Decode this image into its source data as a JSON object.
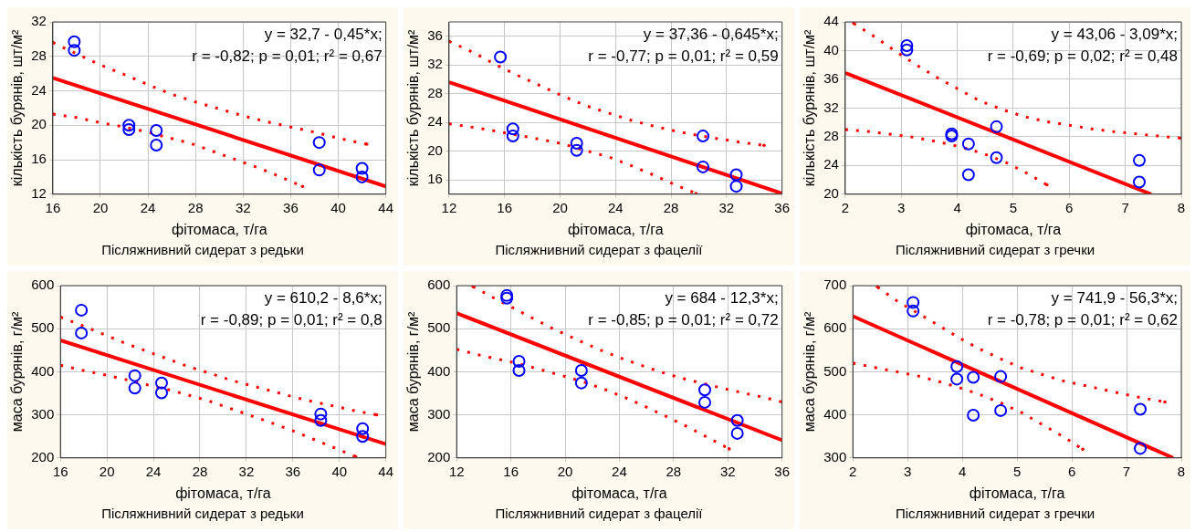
{
  "chart_data": [
    {
      "type": "scatter",
      "xlabel": "фітомаса, т/га",
      "ylabel": "кількість бурянів, шт/м²",
      "xlim": [
        16,
        44
      ],
      "xticks": [
        16,
        20,
        24,
        28,
        32,
        36,
        40,
        44
      ],
      "ylim": [
        12,
        32
      ],
      "yticks": [
        12,
        16,
        20,
        24,
        28,
        32
      ],
      "grid": true,
      "legend": false,
      "annotations": [
        "y = 32,7 - 0,45*x;",
        "r = -0,82; p = 0,01; r² = 0,67",
        "Післяжнивний сидерат з редьки"
      ],
      "series": [
        {
          "type": "scatter",
          "color": "#0000ff",
          "marker": "circle",
          "x": [
            17.8,
            17.8,
            22.4,
            22.4,
            24.7,
            24.7,
            38.4,
            38.4,
            42,
            42
          ],
          "values": [
            29.7,
            28.7,
            20,
            19.5,
            19.4,
            17.7,
            18,
            14.8,
            15,
            14
          ]
        },
        {
          "type": "line",
          "color": "#ff0000",
          "line_style": "solid",
          "marker": "none",
          "x": [
            16,
            44
          ],
          "values": [
            25.5,
            12.9
          ]
        },
        {
          "type": "line",
          "color": "#ff0000",
          "line_style": "dotted",
          "marker": "none",
          "x": [
            16,
            18,
            20,
            22,
            24,
            26,
            28,
            30,
            32,
            34,
            36,
            38,
            40,
            42.4
          ],
          "values": [
            29.6,
            28.3,
            27,
            25.9,
            24.7,
            23.6,
            22.7,
            21.9,
            21.1,
            20.4,
            19.8,
            19.2,
            18.5,
            17.8
          ]
        },
        {
          "type": "line",
          "color": "#ff0000",
          "line_style": "dotted",
          "marker": "none",
          "x": [
            16,
            18,
            20,
            22,
            24,
            25.6,
            27.6,
            29.4,
            31.2,
            33.2,
            35,
            37
          ],
          "values": [
            21.3,
            20.9,
            20.3,
            19.8,
            19.2,
            18.6,
            17.9,
            17,
            16.1,
            15.1,
            14.1,
            12.9
          ]
        }
      ]
    },
    {
      "type": "scatter",
      "xlabel": "фітомаса, т/га",
      "ylabel": "кількість бурянів, шт/м²",
      "xlim": [
        12,
        36
      ],
      "xticks": [
        12,
        16,
        20,
        24,
        28,
        32,
        36
      ],
      "ylim": [
        14,
        38
      ],
      "yticks": [
        16,
        20,
        24,
        28,
        32,
        36
      ],
      "grid": true,
      "legend": false,
      "annotations": [
        "y = 37,36 - 0,645*x;",
        "r = -0,77; p = 0,01; r² = 0,59",
        "Післяжнивний сидерат з фацелії"
      ],
      "series": [
        {
          "type": "scatter",
          "color": "#0000ff",
          "marker": "circle",
          "x": [
            15.7,
            16.6,
            16.6,
            21.2,
            21.2,
            30.3,
            30.3,
            32.7,
            32.7
          ],
          "values": [
            33.1,
            23.1,
            22.1,
            21.1,
            20.1,
            22.1,
            17.8,
            16.7,
            15.1
          ]
        },
        {
          "type": "line",
          "color": "#ff0000",
          "line_style": "solid",
          "marker": "none",
          "x": [
            12,
            36
          ],
          "values": [
            29.6,
            14.1
          ]
        },
        {
          "type": "line",
          "color": "#ff0000",
          "line_style": "dotted",
          "marker": "none",
          "x": [
            12,
            13.8,
            15.3,
            17,
            18.7,
            20.3,
            21.9,
            23.5,
            25.1,
            26.7,
            28.3,
            29.9,
            31.5,
            33.1,
            34.7
          ],
          "values": [
            35.3,
            33.7,
            32.1,
            30.5,
            29,
            27.6,
            26.3,
            25.3,
            24.3,
            23.5,
            22.8,
            22.2,
            21.7,
            21.2,
            20.8
          ]
        },
        {
          "type": "line",
          "color": "#ff0000",
          "line_style": "dotted",
          "marker": "none",
          "x": [
            12,
            13.8,
            15.3,
            17,
            18.7,
            20.2,
            21.8,
            23.5,
            25.1,
            26.7,
            28.3,
            29.8
          ],
          "values": [
            23.8,
            23.3,
            22.8,
            22.2,
            21.6,
            21,
            20.1,
            19.2,
            18,
            16.7,
            15.3,
            14.1
          ]
        }
      ]
    },
    {
      "type": "scatter",
      "xlabel": "фітомаса, т/га",
      "ylabel": "кількість бурянів, шт/м²",
      "xlim": [
        2,
        8
      ],
      "xticks": [
        2,
        3,
        4,
        5,
        6,
        7,
        8
      ],
      "ylim": [
        20,
        44
      ],
      "yticks": [
        20,
        24,
        28,
        32,
        36,
        40,
        44
      ],
      "grid": true,
      "legend": false,
      "annotations": [
        "y = 43,06 - 3,09*x;",
        "r = -0,69; p = 0,02; r² = 0,48",
        "Післяжнивний сидерат з гречки"
      ],
      "series": [
        {
          "type": "scatter",
          "color": "#0000ff",
          "marker": "circle",
          "x": [
            3.1,
            3.1,
            3.9,
            3.9,
            4.2,
            4.2,
            4.7,
            4.7,
            7.25,
            7.25
          ],
          "values": [
            40.7,
            40.1,
            28.4,
            28.1,
            27,
            22.7,
            29.4,
            25.1,
            24.7,
            21.7
          ]
        },
        {
          "type": "line",
          "color": "#ff0000",
          "line_style": "solid",
          "marker": "none",
          "x": [
            2,
            7.46
          ],
          "values": [
            36.9,
            20
          ]
        },
        {
          "type": "line",
          "color": "#ff0000",
          "line_style": "dotted",
          "marker": "none",
          "x": [
            2.15,
            2.55,
            2.9,
            3.25,
            3.65,
            4.05,
            4.4,
            4.8,
            5.2,
            5.6,
            6,
            6.4,
            6.8,
            7.2,
            7.6,
            8
          ],
          "values": [
            43.8,
            41.8,
            39.9,
            38.1,
            36.2,
            34.5,
            33,
            31.8,
            30.8,
            30.1,
            29.6,
            29.1,
            28.7,
            28.4,
            28.1,
            27.8
          ]
        },
        {
          "type": "line",
          "color": "#ff0000",
          "line_style": "dotted",
          "marker": "none",
          "x": [
            2,
            2.45,
            2.85,
            3.25,
            3.65,
            4.05,
            4.45,
            4.85,
            5.25,
            5.6
          ],
          "values": [
            29,
            28.7,
            28.3,
            27.9,
            27.3,
            26.6,
            25.7,
            24.5,
            22.9,
            21.3
          ]
        }
      ]
    },
    {
      "type": "scatter",
      "xlabel": "фітомаса, т/га",
      "ylabel": "маса бурянів, г/м²",
      "xlim": [
        16,
        44
      ],
      "xticks": [
        16,
        20,
        24,
        28,
        32,
        36,
        40,
        44
      ],
      "ylim": [
        200,
        600
      ],
      "yticks": [
        200,
        300,
        400,
        500,
        600
      ],
      "grid": true,
      "legend": false,
      "annotations": [
        "y = 610,2 - 8,6*x;",
        "r = -0,89; p = 0,01; r² = 0,8",
        "Післяжнивний сидерат з редьки"
      ],
      "series": [
        {
          "type": "scatter",
          "color": "#0000ff",
          "marker": "circle",
          "x": [
            17.8,
            17.8,
            22.4,
            22.4,
            24.7,
            24.7,
            38.4,
            38.4,
            42,
            42
          ],
          "values": [
            543,
            490,
            391,
            362,
            374,
            351,
            302,
            287,
            268,
            250
          ]
        },
        {
          "type": "line",
          "color": "#ff0000",
          "line_style": "solid",
          "marker": "none",
          "x": [
            16,
            44
          ],
          "values": [
            473,
            232
          ]
        },
        {
          "type": "line",
          "color": "#ff0000",
          "line_style": "dotted",
          "marker": "none",
          "x": [
            16,
            17.9,
            19.8,
            21.6,
            23.4,
            25.2,
            27,
            28.8,
            30.6,
            32.4,
            34.2,
            36,
            37.8,
            39.6,
            41.4,
            43.2
          ],
          "values": [
            527,
            507,
            486,
            466,
            448,
            430,
            412,
            397,
            381,
            368,
            355,
            342,
            330,
            320,
            309,
            300
          ]
        },
        {
          "type": "line",
          "color": "#ff0000",
          "line_style": "dotted",
          "marker": "none",
          "x": [
            16,
            17.8,
            19.8,
            21.6,
            23.4,
            25.2,
            27,
            28.8,
            30.6,
            32.4,
            34.2,
            36,
            37.8,
            39.6,
            41.4
          ],
          "values": [
            415,
            404,
            393,
            382,
            370,
            359,
            346,
            332,
            315,
            298,
            281,
            263,
            243,
            223,
            203
          ]
        }
      ]
    },
    {
      "type": "scatter",
      "xlabel": "фітомаса, т/га",
      "ylabel": "маса бурянів, г/м²",
      "xlim": [
        12,
        36
      ],
      "xticks": [
        12,
        16,
        20,
        24,
        28,
        32,
        36
      ],
      "ylim": [
        200,
        600
      ],
      "yticks": [
        200,
        300,
        400,
        500,
        600
      ],
      "grid": true,
      "legend": false,
      "annotations": [
        "y = 684 - 12,3*x;",
        "r = -0,85; p = 0,01; r² = 0,72",
        "Післяжнивний сидерат з фацелії"
      ],
      "series": [
        {
          "type": "scatter",
          "color": "#0000ff",
          "marker": "circle",
          "x": [
            15.7,
            15.7,
            16.6,
            16.6,
            21.2,
            21.2,
            30.3,
            30.3,
            32.7,
            32.7
          ],
          "values": [
            577,
            571,
            424,
            403,
            403,
            374,
            358,
            329,
            287,
            257
          ]
        },
        {
          "type": "line",
          "color": "#ff0000",
          "line_style": "solid",
          "marker": "none",
          "x": [
            12,
            36
          ],
          "values": [
            536,
            241
          ]
        },
        {
          "type": "line",
          "color": "#ff0000",
          "line_style": "dotted",
          "marker": "none",
          "x": [
            13.2,
            14.7,
            16.3,
            17.8,
            19.3,
            20.9,
            22.4,
            24,
            25.5,
            27,
            28.5,
            30,
            31.6,
            33.1,
            34.6,
            36
          ],
          "values": [
            598,
            572,
            546,
            521,
            497,
            474,
            453,
            433,
            416,
            400,
            386,
            374,
            362,
            351,
            341,
            330
          ]
        },
        {
          "type": "line",
          "color": "#ff0000",
          "line_style": "dotted",
          "marker": "none",
          "x": [
            12,
            13.5,
            15.1,
            16.8,
            18.3,
            19.9,
            21.4,
            23,
            24.5,
            26,
            27.6,
            29.1,
            30.6,
            32.1
          ],
          "values": [
            452,
            440,
            429,
            417,
            404,
            390,
            376,
            358,
            339,
            318,
            294,
            271,
            246,
            221
          ]
        }
      ]
    },
    {
      "type": "scatter",
      "xlabel": "фітомаса, т/га",
      "ylabel": "маса бурянів, г/м²",
      "xlim": [
        2,
        8
      ],
      "xticks": [
        2,
        3,
        4,
        5,
        6,
        7,
        8
      ],
      "ylim": [
        300,
        700
      ],
      "yticks": [
        300,
        400,
        500,
        600,
        700
      ],
      "grid": true,
      "legend": false,
      "annotations": [
        "y = 741,9 - 56,3*x;",
        "r = -0,78; p = 0,01; r² = 0,62",
        "Післяжнивний сидерат з гречки"
      ],
      "series": [
        {
          "type": "scatter",
          "color": "#0000ff",
          "marker": "circle",
          "x": [
            3.1,
            3.1,
            3.9,
            3.9,
            4.2,
            4.2,
            4.7,
            4.7,
            7.25,
            7.25
          ],
          "values": [
            661,
            641,
            512,
            483,
            487,
            399,
            489,
            410,
            413,
            322
          ]
        },
        {
          "type": "line",
          "color": "#ff0000",
          "line_style": "solid",
          "marker": "none",
          "x": [
            2,
            7.85
          ],
          "values": [
            629,
            300
          ]
        },
        {
          "type": "line",
          "color": "#ff0000",
          "line_style": "dotted",
          "marker": "none",
          "x": [
            2.45,
            2.8,
            3.2,
            3.6,
            3.95,
            4.3,
            4.7,
            5.05,
            5.45,
            5.8,
            6.2,
            6.6,
            6.95,
            7.3,
            7.7
          ],
          "values": [
            697,
            665,
            635,
            605,
            578,
            554,
            530,
            510,
            494,
            480,
            469,
            458,
            448,
            439,
            430
          ]
        },
        {
          "type": "line",
          "color": "#ff0000",
          "line_style": "dotted",
          "marker": "none",
          "x": [
            2,
            2.4,
            2.8,
            3.2,
            3.55,
            3.95,
            4.3,
            4.7,
            5.1,
            5.45,
            5.85,
            6.2
          ],
          "values": [
            520,
            510,
            500,
            490,
            478,
            463,
            448,
            428,
            404,
            378,
            349,
            320
          ]
        }
      ]
    }
  ]
}
